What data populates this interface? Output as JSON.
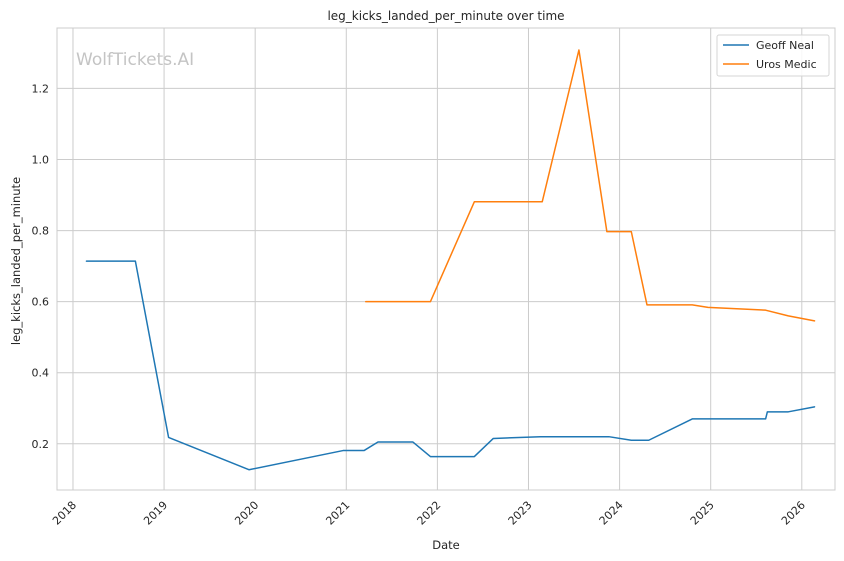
{
  "chart_data": {
    "type": "line",
    "title": "leg_kicks_landed_per_minute over time",
    "xlabel": "Date",
    "ylabel": "leg_kicks_landed_per_minute",
    "watermark": "WolfTickets.AI",
    "x_ticks": [
      "2018",
      "2019",
      "2020",
      "2021",
      "2022",
      "2023",
      "2024",
      "2025",
      "2026"
    ],
    "y_ticks": [
      "0.2",
      "0.4",
      "0.6",
      "0.8",
      "1.0",
      "1.2"
    ],
    "xlim": [
      "2017-10-29",
      "2026-05-14"
    ],
    "ylim": [
      0.07,
      1.37
    ],
    "grid": true,
    "legend_position": "top-right",
    "series": [
      {
        "name": "Geoff Neal",
        "color": "#1f77b4",
        "points": [
          [
            "2018-02-24",
            0.714
          ],
          [
            "2018-09-08",
            0.714
          ],
          [
            "2019-01-19",
            0.218
          ],
          [
            "2019-12-07",
            0.127
          ],
          [
            "2020-12-19",
            0.181
          ],
          [
            "2021-03-13",
            0.181
          ],
          [
            "2021-05-08",
            0.205
          ],
          [
            "2021-09-25",
            0.205
          ],
          [
            "2021-12-04",
            0.164
          ],
          [
            "2022-05-29",
            0.164
          ],
          [
            "2022-08-13",
            0.215
          ],
          [
            "2023-02-18",
            0.22
          ],
          [
            "2023-11-19",
            0.22
          ],
          [
            "2024-02-17",
            0.21
          ],
          [
            "2024-04-27",
            0.21
          ],
          [
            "2024-10-19",
            0.27
          ],
          [
            "2025-08-09",
            0.27
          ],
          [
            "2025-08-16",
            0.29
          ],
          [
            "2025-11-08",
            0.29
          ],
          [
            "2026-02-21",
            0.304
          ]
        ]
      },
      {
        "name": "Uros Medic",
        "color": "#ff7f0e",
        "points": [
          [
            "2021-03-20",
            0.6
          ],
          [
            "2021-12-04",
            0.6
          ],
          [
            "2022-05-29",
            0.881
          ],
          [
            "2023-02-25",
            0.881
          ],
          [
            "2023-07-22",
            1.308
          ],
          [
            "2023-11-11",
            0.797
          ],
          [
            "2024-02-17",
            0.797
          ],
          [
            "2024-04-20",
            0.591
          ],
          [
            "2024-10-19",
            0.591
          ],
          [
            "2024-12-21",
            0.584
          ],
          [
            "2025-08-09",
            0.576
          ],
          [
            "2025-11-08",
            0.56
          ],
          [
            "2026-02-21",
            0.546
          ]
        ]
      }
    ]
  }
}
